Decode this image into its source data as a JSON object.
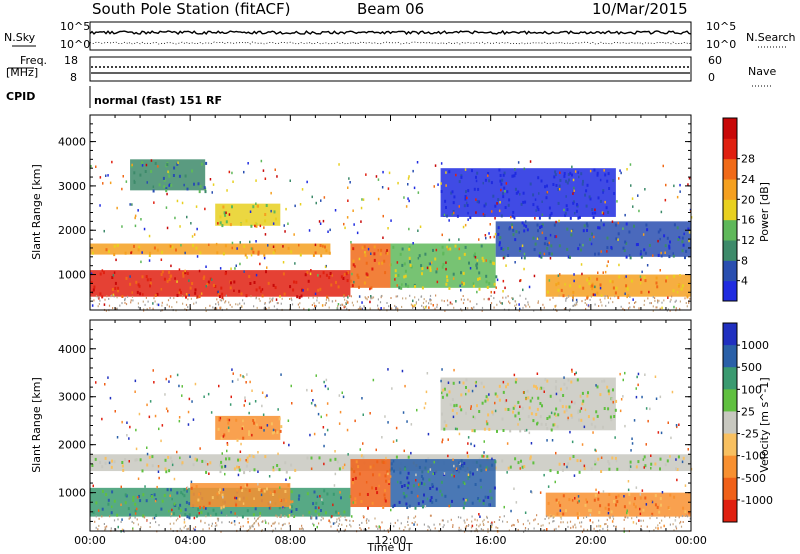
{
  "header": {
    "station": "South Pole Station (fitACF)",
    "beam": "Beam 06",
    "date": "10/Mar/2015"
  },
  "top_panels": {
    "nsky_label": "N.Sky",
    "nsky_hi": "10^5",
    "nsky_lo": "10^0",
    "nsearch_label": "N.Search",
    "nsearch_hi": "10^5",
    "nsearch_lo": "10^0",
    "freq_label_1": "Freq.",
    "freq_label_2": "[MHz]",
    "freq_hi": "18",
    "freq_lo": "8",
    "nave_label": "Nave",
    "nave_hi": "60",
    "nave_lo": "0",
    "cpid_label": "CPID",
    "cpid_value": "normal (fast) 151 RF"
  },
  "chart_data": [
    {
      "type": "heatmap",
      "name": "power",
      "ylabel": "Slant Range [km]",
      "xlabel": "",
      "ylim": [
        200,
        4600
      ],
      "yticks": [
        "1000",
        "2000",
        "3000",
        "4000"
      ],
      "colorbar_label": "Power [dB]",
      "colorbar_ticks": [
        "4",
        "8",
        "12",
        "16",
        "20",
        "24",
        "28"
      ],
      "colors": [
        "#1f2be0",
        "#2a4fb0",
        "#3d8a6a",
        "#5fb85a",
        "#e8d020",
        "#f5a020",
        "#f06a18",
        "#e02010",
        "#c80808"
      ],
      "bands": [
        {
          "t0": 0.0,
          "t1": 10.4,
          "r0": 500,
          "r1": 1100,
          "level": 7
        },
        {
          "t0": 10.4,
          "t1": 12.0,
          "r0": 700,
          "r1": 1700,
          "level": 6
        },
        {
          "t0": 0.0,
          "t1": 9.6,
          "r0": 1450,
          "r1": 1700,
          "level": 5
        },
        {
          "t0": 5.0,
          "t1": 7.6,
          "r0": 2100,
          "r1": 2600,
          "level": 4
        },
        {
          "t0": 12.0,
          "t1": 16.2,
          "r0": 700,
          "r1": 1700,
          "level": 3
        },
        {
          "t0": 16.2,
          "t1": 24.0,
          "r0": 1400,
          "r1": 2200,
          "level": 1
        },
        {
          "t0": 18.2,
          "t1": 24.0,
          "r0": 500,
          "r1": 1000,
          "level": 5
        },
        {
          "t0": 14.0,
          "t1": 21.0,
          "r0": 2300,
          "r1": 3400,
          "level": 0
        },
        {
          "t0": 1.6,
          "t1": 4.6,
          "r0": 2900,
          "r1": 3600,
          "level": 2
        }
      ]
    },
    {
      "type": "heatmap",
      "name": "velocity",
      "ylabel": "Slant Range [km]",
      "xlabel": "Time UT",
      "ylim": [
        200,
        4600
      ],
      "yticks": [
        "1000",
        "2000",
        "3000",
        "4000"
      ],
      "colorbar_label": "Velocity [m s^-1]",
      "colorbar_ticks": [
        "1000",
        "500",
        "100",
        "25",
        "-25",
        "-100",
        "-500",
        "-1000"
      ],
      "colors": [
        "#2030c0",
        "#2a60a8",
        "#3a9a70",
        "#60c040",
        "#c8c8c0",
        "#f8c060",
        "#f89030",
        "#f06018",
        "#e02010"
      ],
      "bands": [
        {
          "t0": 0.0,
          "t1": 10.4,
          "r0": 500,
          "r1": 1100,
          "level": 2
        },
        {
          "t0": 4.0,
          "t1": 8.0,
          "r0": 700,
          "r1": 1200,
          "level": 6
        },
        {
          "t0": 0.0,
          "t1": 24.0,
          "r0": 1450,
          "r1": 1800,
          "level": 4
        },
        {
          "t0": 10.4,
          "t1": 12.0,
          "r0": 700,
          "r1": 1700,
          "level": 7
        },
        {
          "t0": 12.0,
          "t1": 16.2,
          "r0": 700,
          "r1": 1700,
          "level": 1
        },
        {
          "t0": 18.2,
          "t1": 24.0,
          "r0": 500,
          "r1": 1000,
          "level": 6
        },
        {
          "t0": 5.0,
          "t1": 7.6,
          "r0": 2100,
          "r1": 2600,
          "level": 6
        },
        {
          "t0": 14.0,
          "t1": 21.0,
          "r0": 2300,
          "r1": 3400,
          "level": 4
        }
      ]
    }
  ],
  "x_axis": {
    "label": "Time UT",
    "xlim": [
      0,
      24
    ],
    "ticks": [
      "00:00",
      "04:00",
      "08:00",
      "12:00",
      "16:00",
      "20:00",
      "00:00"
    ]
  }
}
